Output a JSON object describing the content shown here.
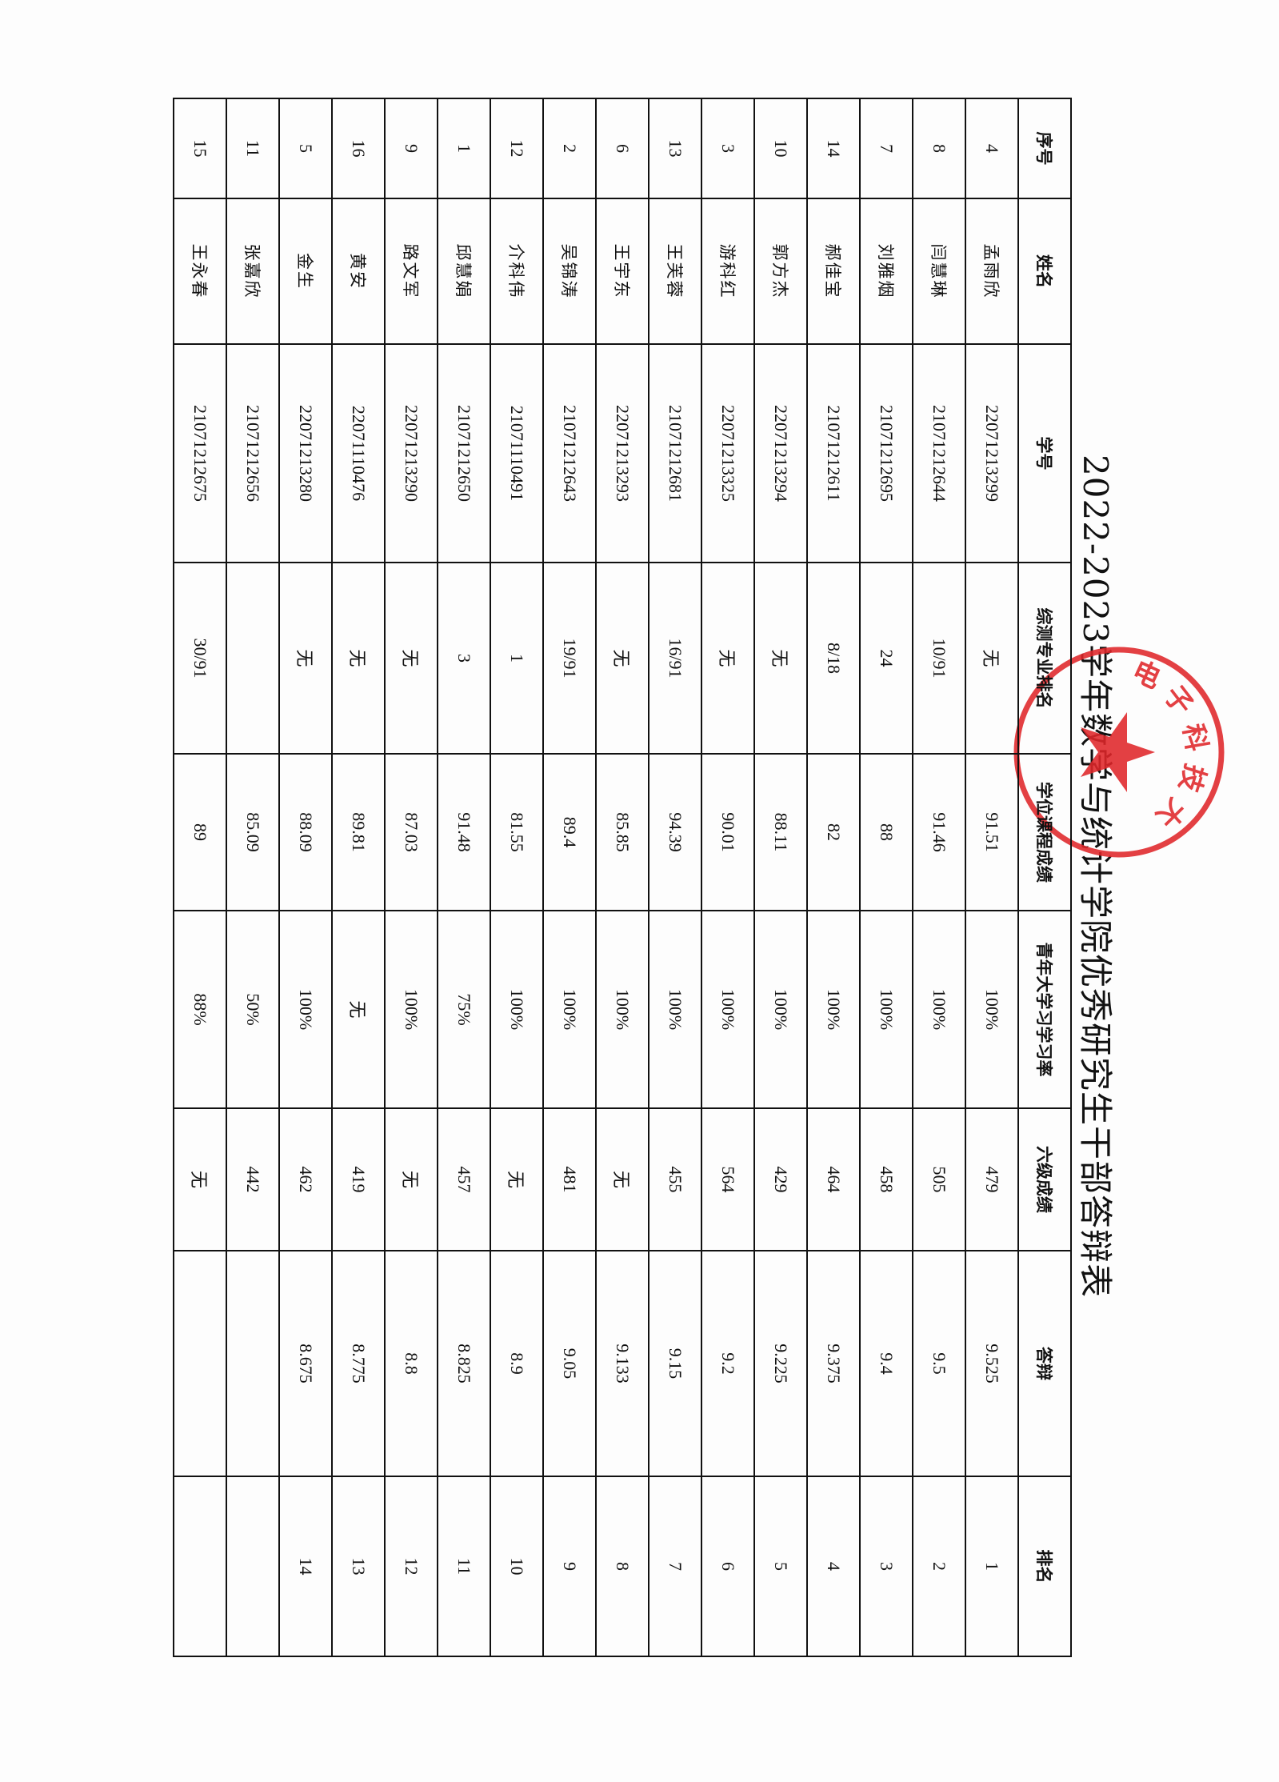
{
  "title": "2022-2023学年数学与统计学院优秀研究生干部答辩表",
  "stamp": {
    "text": "电子科技大",
    "color": "#e0262a",
    "icon": "star-icon"
  },
  "table": {
    "headers": [
      "序号",
      "姓名",
      "学号",
      "综测专业排名",
      "学位课程成绩",
      "青年大学习学习率",
      "六级成绩",
      "答辩",
      "排名"
    ],
    "rows": [
      [
        "4",
        "孟雨欣",
        "2207121329９",
        "无",
        "91.51",
        "100%",
        "479",
        "9.525",
        "1"
      ],
      [
        "8",
        "闫慧琳",
        "21071212644",
        "10/91",
        "91.46",
        "100%",
        "505",
        "9.5",
        "2"
      ],
      [
        "7",
        "刘雅烟",
        "21071212695",
        "24",
        "88",
        "100%",
        "458",
        "9.4",
        "3"
      ],
      [
        "14",
        "郝佳宝",
        "21071212611",
        "8/18",
        "82",
        "100%",
        "464",
        "9.375",
        "4"
      ],
      [
        "10",
        "郭方杰",
        "22071213294",
        "无",
        "88.11",
        "100%",
        "429",
        "9.225",
        "5"
      ],
      [
        "3",
        "游科红",
        "22071213325",
        "无",
        "90.01",
        "100%",
        "564",
        "9.2",
        "6"
      ],
      [
        "13",
        "王芙蓉",
        "21071212681",
        "16/91",
        "94.39",
        "100%",
        "455",
        "9.15",
        "7"
      ],
      [
        "6",
        "王宇东",
        "22071213293",
        "无",
        "85.85",
        "100%",
        "无",
        "9.133",
        "8"
      ],
      [
        "2",
        "吴锦涛",
        "21071212643",
        "19/91",
        "89.4",
        "100%",
        "481",
        "9.05",
        "9"
      ],
      [
        "12",
        "介科伟",
        "21071110491",
        "1",
        "81.55",
        "100%",
        "无",
        "8.9",
        "10"
      ],
      [
        "1",
        "邱慧娟",
        "21071212650",
        "3",
        "91.48",
        "75%",
        "457",
        "8.825",
        "11"
      ],
      [
        "9",
        "路文军",
        "22071213290",
        "无",
        "87.03",
        "100%",
        "无",
        "8.8",
        "12"
      ],
      [
        "16",
        "黄安",
        "22071110476",
        "无",
        "89.81",
        "无",
        "419",
        "8.775",
        "13"
      ],
      [
        "5",
        "金生",
        "22071213280",
        "无",
        "88.09",
        "100%",
        "462",
        "8.675",
        "14"
      ],
      [
        "11",
        "张嘉欣",
        "21071212656",
        "",
        "85.09",
        "50%",
        "442",
        "",
        ""
      ],
      [
        "15",
        "王永春",
        "21071212675",
        "30/91",
        "89",
        "88%",
        "无",
        "",
        ""
      ]
    ]
  }
}
